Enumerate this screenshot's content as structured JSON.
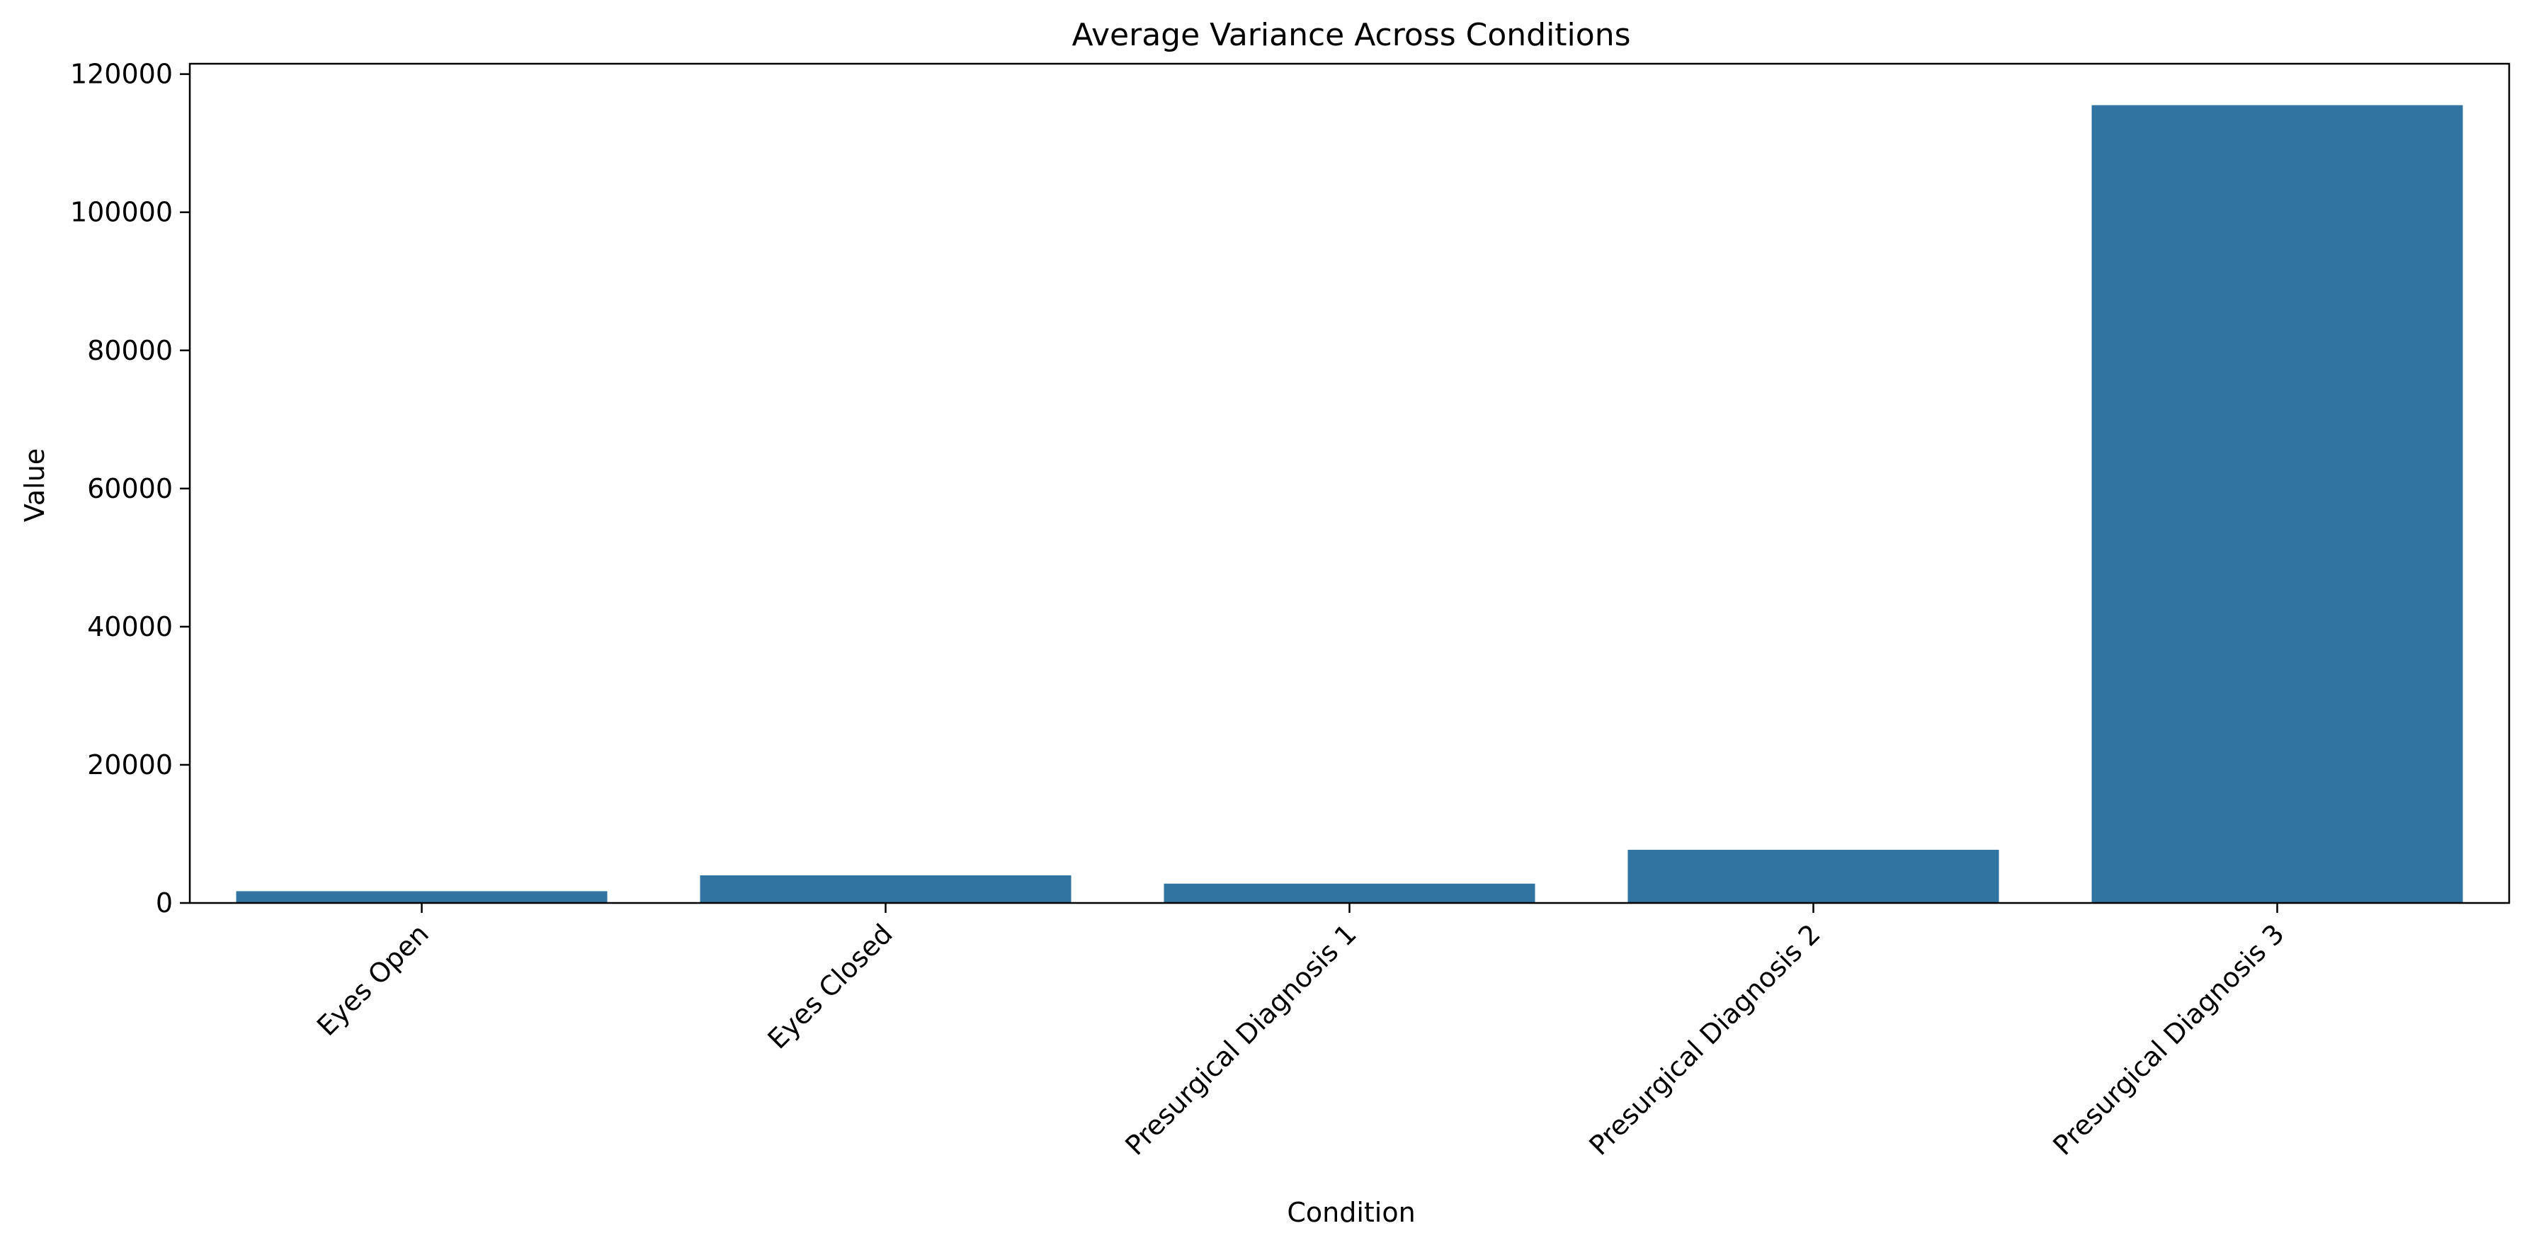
{
  "chart_data": {
    "type": "bar",
    "title": "Average Variance Across Conditions",
    "xlabel": "Condition",
    "ylabel": "Value",
    "categories": [
      "Eyes Open",
      "Eyes Closed",
      "Presurgical Diagnosis 1",
      "Presurgical Diagnosis 2",
      "Presurgical Diagnosis 3"
    ],
    "values": [
      1700,
      4000,
      2800,
      7700,
      115500
    ],
    "ylim": [
      0,
      121500
    ],
    "yticks": [
      0,
      20000,
      40000,
      60000,
      80000,
      100000,
      120000
    ],
    "ytick_labels": [
      "0",
      "20000",
      "40000",
      "60000",
      "80000",
      "100000",
      "120000"
    ],
    "x_tick_rotation": 45,
    "grid": false,
    "legend": "none",
    "bar_color": "#3274a1"
  }
}
